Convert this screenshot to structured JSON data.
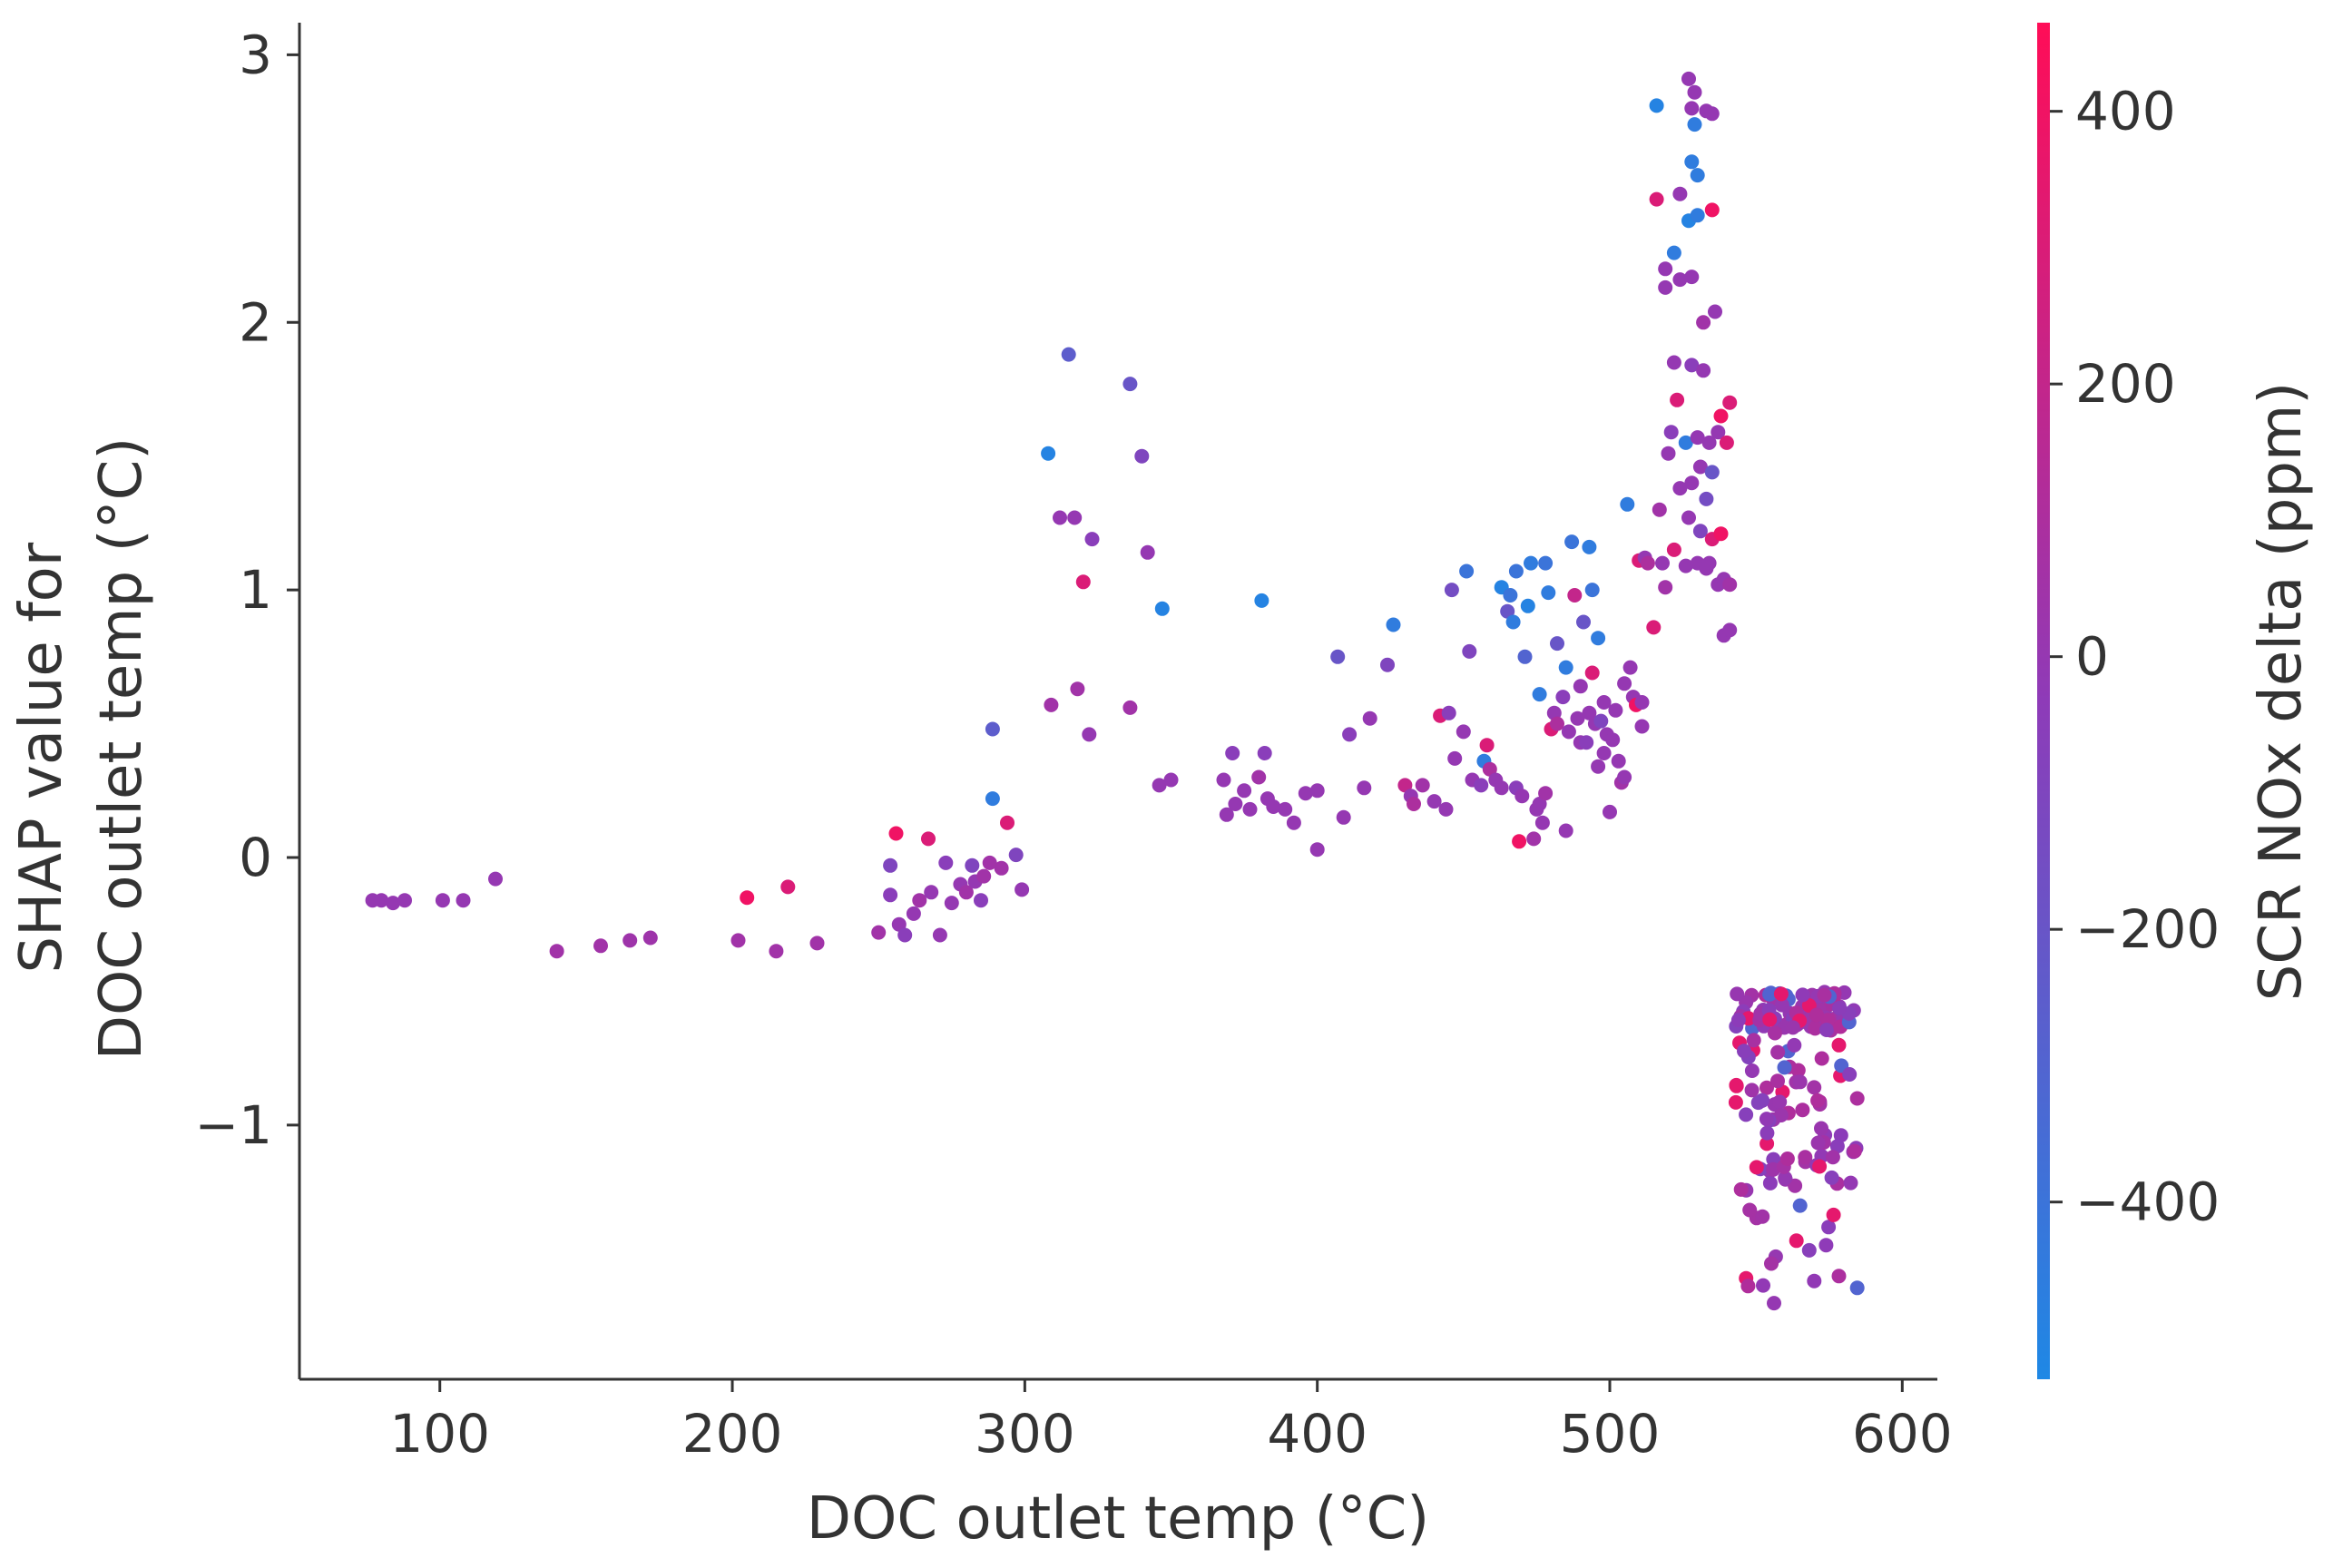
{
  "chart_data": {
    "type": "scatter",
    "title": "",
    "xlabel": "DOC outlet temp (°C)",
    "ylabel_lines": [
      "SHAP value for",
      "DOC outlet temp (°C)"
    ],
    "xlim": [
      52,
      612
    ],
    "ylim": [
      -1.95,
      3.12
    ],
    "x_ticks": [
      100,
      200,
      300,
      400,
      500,
      600
    ],
    "y_ticks": [
      -1,
      0,
      1,
      2,
      3
    ],
    "x_tick_labels": [
      "100",
      "200",
      "300",
      "400",
      "500",
      "600"
    ],
    "y_tick_labels": [
      "−1",
      "0",
      "1",
      "2",
      "3"
    ],
    "colorbar": {
      "label": "SCR NOx delta (ppm)",
      "range": [
        -530,
        465
      ],
      "ticks": [
        400,
        200,
        0,
        -200,
        -400
      ],
      "tick_labels": [
        "400",
        "200",
        "0",
        "−200",
        "−400"
      ],
      "colors": {
        "low": "#1e88e5",
        "mid": "#8e3bb8",
        "high": "#ff0d57"
      }
    },
    "grid": false,
    "legend": "none",
    "points": [
      [
        77,
        -0.16,
        0
      ],
      [
        80,
        -0.16,
        0
      ],
      [
        84,
        -0.17,
        0
      ],
      [
        88,
        -0.16,
        0
      ],
      [
        101,
        -0.16,
        0
      ],
      [
        108,
        -0.16,
        0
      ],
      [
        119,
        -0.08,
        0
      ],
      [
        140,
        -0.35,
        50
      ],
      [
        155,
        -0.33,
        50
      ],
      [
        165,
        -0.31,
        40
      ],
      [
        172,
        -0.3,
        40
      ],
      [
        202,
        -0.31,
        50
      ],
      [
        205,
        -0.15,
        400
      ],
      [
        215,
        -0.35,
        50
      ],
      [
        219,
        -0.11,
        300
      ],
      [
        229,
        -0.32,
        50
      ],
      [
        250,
        -0.28,
        50
      ],
      [
        254,
        -0.03,
        -100
      ],
      [
        254,
        -0.14,
        -50
      ],
      [
        256,
        0.09,
        400
      ],
      [
        257,
        -0.25,
        0
      ],
      [
        259,
        -0.29,
        -50
      ],
      [
        262,
        -0.21,
        0
      ],
      [
        264,
        -0.16,
        50
      ],
      [
        267,
        0.07,
        300
      ],
      [
        268,
        -0.13,
        0
      ],
      [
        271,
        -0.29,
        0
      ],
      [
        273,
        -0.02,
        -50
      ],
      [
        275,
        -0.17,
        0
      ],
      [
        278,
        -0.1,
        0
      ],
      [
        280,
        -0.13,
        50
      ],
      [
        282,
        -0.03,
        -100
      ],
      [
        283,
        -0.09,
        0
      ],
      [
        285,
        -0.16,
        -50
      ],
      [
        286,
        -0.07,
        50
      ],
      [
        288,
        -0.02,
        50
      ],
      [
        289,
        0.48,
        -250
      ],
      [
        289,
        0.22,
        -450
      ],
      [
        292,
        -0.04,
        50
      ],
      [
        294,
        0.13,
        300
      ],
      [
        297,
        0.01,
        -100
      ],
      [
        299,
        -0.12,
        0
      ],
      [
        308,
        1.51,
        -500
      ],
      [
        309,
        0.57,
        50
      ],
      [
        312,
        1.27,
        0
      ],
      [
        315,
        1.88,
        -250
      ],
      [
        317,
        1.27,
        0
      ],
      [
        318,
        0.63,
        50
      ],
      [
        320,
        1.03,
        300
      ],
      [
        322,
        0.46,
        0
      ],
      [
        323,
        1.19,
        -50
      ],
      [
        336,
        0.56,
        50
      ],
      [
        336,
        1.77,
        -200
      ],
      [
        340,
        1.5,
        -100
      ],
      [
        342,
        1.14,
        0
      ],
      [
        346,
        0.27,
        0
      ],
      [
        347,
        0.93,
        -500
      ],
      [
        350,
        0.29,
        0
      ],
      [
        368,
        0.29,
        0
      ],
      [
        369,
        0.16,
        0
      ],
      [
        371,
        0.39,
        -50
      ],
      [
        372,
        0.2,
        0
      ],
      [
        375,
        0.25,
        0
      ],
      [
        377,
        0.18,
        0
      ],
      [
        380,
        0.3,
        50
      ],
      [
        381,
        0.96,
        -500
      ],
      [
        382,
        0.39,
        -50
      ],
      [
        383,
        0.22,
        0
      ],
      [
        385,
        0.19,
        0
      ],
      [
        389,
        0.18,
        0
      ],
      [
        392,
        0.13,
        0
      ],
      [
        396,
        0.24,
        0
      ],
      [
        400,
        0.25,
        0
      ],
      [
        400,
        0.03,
        0
      ],
      [
        407,
        0.75,
        -200
      ],
      [
        409,
        0.15,
        0
      ],
      [
        411,
        0.46,
        -50
      ],
      [
        416,
        0.26,
        0
      ],
      [
        418,
        0.52,
        0
      ],
      [
        424,
        0.72,
        -100
      ],
      [
        426,
        0.87,
        -450
      ],
      [
        430,
        0.27,
        200
      ],
      [
        432,
        0.23,
        0
      ],
      [
        433,
        0.2,
        100
      ],
      [
        436,
        0.27,
        50
      ],
      [
        440,
        0.21,
        0
      ],
      [
        442,
        0.53,
        300
      ],
      [
        444,
        0.18,
        0
      ],
      [
        445,
        0.54,
        -50
      ],
      [
        446,
        1.0,
        -150
      ],
      [
        447,
        0.37,
        0
      ],
      [
        450,
        0.47,
        0
      ],
      [
        451,
        1.07,
        -400
      ],
      [
        452,
        0.77,
        -100
      ],
      [
        453,
        0.29,
        0
      ],
      [
        456,
        0.27,
        -50
      ],
      [
        457,
        0.36,
        -450
      ],
      [
        458,
        0.42,
        300
      ],
      [
        459,
        0.33,
        100
      ],
      [
        461,
        0.29,
        0
      ],
      [
        463,
        0.26,
        0
      ],
      [
        463,
        1.01,
        -500
      ],
      [
        465,
        0.92,
        -200
      ],
      [
        466,
        0.98,
        -400
      ],
      [
        467,
        0.88,
        -450
      ],
      [
        468,
        0.26,
        -50
      ],
      [
        468,
        1.07,
        -400
      ],
      [
        469,
        0.06,
        400
      ],
      [
        470,
        0.23,
        0
      ],
      [
        471,
        0.75,
        -300
      ],
      [
        472,
        0.94,
        -500
      ],
      [
        473,
        1.1,
        -450
      ],
      [
        474,
        0.07,
        50
      ],
      [
        475,
        0.18,
        0
      ],
      [
        476,
        0.2,
        0
      ],
      [
        476,
        0.61,
        -450
      ],
      [
        477,
        0.13,
        0
      ],
      [
        478,
        0.24,
        50
      ],
      [
        478,
        1.1,
        -400
      ],
      [
        479,
        0.99,
        -450
      ],
      [
        480,
        0.48,
        300
      ],
      [
        481,
        0.54,
        0
      ],
      [
        482,
        0.5,
        100
      ],
      [
        482,
        0.8,
        -200
      ],
      [
        484,
        0.6,
        -50
      ],
      [
        485,
        0.1,
        0
      ],
      [
        485,
        0.71,
        -450
      ],
      [
        486,
        0.47,
        0
      ],
      [
        487,
        1.18,
        -400
      ],
      [
        488,
        0.98,
        200
      ],
      [
        489,
        0.52,
        0
      ],
      [
        490,
        0.43,
        0
      ],
      [
        490,
        0.64,
        0
      ],
      [
        491,
        0.88,
        -200
      ],
      [
        492,
        0.43,
        -50
      ],
      [
        493,
        1.16,
        -450
      ],
      [
        493,
        0.54,
        0
      ],
      [
        494,
        1.0,
        -400
      ],
      [
        494,
        0.69,
        300
      ],
      [
        495,
        0.5,
        0
      ],
      [
        496,
        0.34,
        0
      ],
      [
        496,
        0.82,
        -450
      ],
      [
        497,
        0.51,
        -100
      ],
      [
        498,
        0.58,
        0
      ],
      [
        498,
        0.39,
        0
      ],
      [
        499,
        0.46,
        0
      ],
      [
        500,
        0.17,
        0
      ],
      [
        501,
        0.44,
        0
      ],
      [
        502,
        0.55,
        0
      ],
      [
        503,
        0.36,
        0
      ],
      [
        504,
        0.28,
        50
      ],
      [
        505,
        0.65,
        0
      ],
      [
        505,
        0.3,
        0
      ],
      [
        506,
        1.32,
        -450
      ],
      [
        507,
        0.71,
        0
      ],
      [
        508,
        0.6,
        0
      ],
      [
        509,
        0.57,
        400
      ],
      [
        510,
        1.11,
        300
      ],
      [
        511,
        0.58,
        0
      ],
      [
        511,
        0.49,
        0
      ],
      [
        512,
        1.12,
        0
      ],
      [
        513,
        1.1,
        100
      ],
      [
        515,
        0.86,
        300
      ],
      [
        516,
        2.81,
        -500
      ],
      [
        516,
        2.46,
        300
      ],
      [
        517,
        1.3,
        50
      ],
      [
        518,
        1.1,
        0
      ],
      [
        519,
        1.01,
        50
      ],
      [
        519,
        2.13,
        0
      ],
      [
        519,
        2.2,
        0
      ],
      [
        520,
        1.51,
        0
      ],
      [
        521,
        1.59,
        -50
      ],
      [
        522,
        1.15,
        300
      ],
      [
        522,
        1.85,
        0
      ],
      [
        522,
        2.26,
        -450
      ],
      [
        523,
        1.71,
        300
      ],
      [
        524,
        1.38,
        0
      ],
      [
        524,
        2.48,
        0
      ],
      [
        524,
        2.16,
        0
      ],
      [
        526,
        1.55,
        -450
      ],
      [
        526,
        1.09,
        0
      ],
      [
        527,
        1.27,
        0
      ],
      [
        527,
        2.38,
        -500
      ],
      [
        527,
        2.91,
        0
      ],
      [
        528,
        1.4,
        0
      ],
      [
        528,
        2.17,
        0
      ],
      [
        528,
        1.84,
        -50
      ],
      [
        528,
        2.8,
        0
      ],
      [
        528,
        2.6,
        -450
      ],
      [
        529,
        2.74,
        -450
      ],
      [
        529,
        2.86,
        0
      ],
      [
        530,
        1.1,
        0
      ],
      [
        530,
        2.55,
        -450
      ],
      [
        530,
        1.57,
        0
      ],
      [
        530,
        2.4,
        -450
      ],
      [
        531,
        1.46,
        0
      ],
      [
        531,
        1.22,
        -100
      ],
      [
        532,
        1.82,
        0
      ],
      [
        532,
        2.0,
        50
      ],
      [
        533,
        2.79,
        0
      ],
      [
        533,
        1.08,
        0
      ],
      [
        533,
        1.34,
        -150
      ],
      [
        534,
        1.1,
        0
      ],
      [
        534,
        1.55,
        0
      ],
      [
        535,
        1.19,
        300
      ],
      [
        535,
        2.42,
        400
      ],
      [
        535,
        1.44,
        -200
      ],
      [
        535,
        2.78,
        0
      ],
      [
        536,
        2.04,
        0
      ],
      [
        537,
        1.02,
        0
      ],
      [
        537,
        1.59,
        0
      ],
      [
        538,
        1.65,
        400
      ],
      [
        538,
        1.21,
        400
      ],
      [
        539,
        0.83,
        0
      ],
      [
        539,
        1.04,
        0
      ],
      [
        540,
        1.55,
        300
      ],
      [
        541,
        1.02,
        50
      ],
      [
        541,
        0.85,
        0
      ],
      [
        541,
        1.7,
        300
      ]
    ]
  }
}
